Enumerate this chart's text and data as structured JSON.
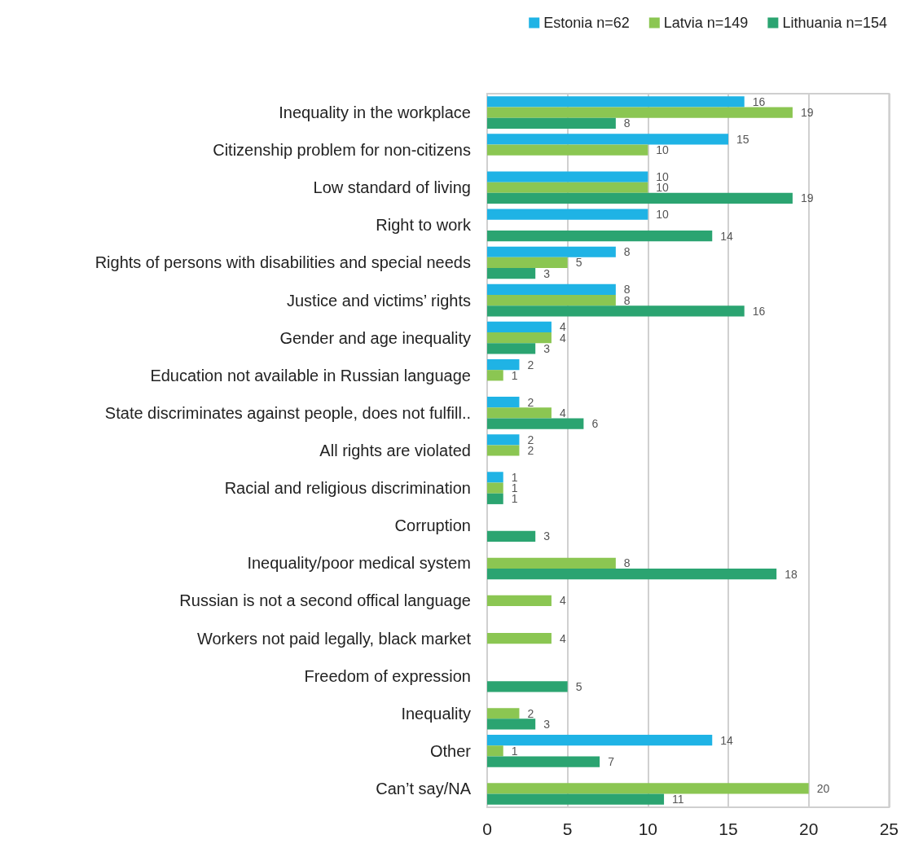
{
  "chart_data": {
    "type": "bar",
    "orientation": "horizontal",
    "categories": [
      "Inequality in the workplace",
      "Citizenship problem for non-citizens",
      "Low standard of living",
      "Right to work",
      "Rights of persons with disabilities and special needs",
      "Justice and victims’ rights",
      "Gender and age inequality",
      "Education not available in Russian language",
      "State discriminates against people, does not fulfill..",
      "All rights are violated",
      "Racial and religious discrimination",
      "Corruption",
      "Inequality/poor medical system",
      "Russian is not a second offical language",
      "Workers not paid legally, black market",
      "Freedom of expression",
      "Inequality",
      "Other",
      "Can’t say/NA"
    ],
    "series": [
      {
        "name": "Estonia n=62",
        "color": "#1fb3e5",
        "values": [
          16,
          15,
          10,
          10,
          8,
          8,
          4,
          2,
          2,
          2,
          1,
          null,
          null,
          null,
          null,
          null,
          null,
          14,
          null
        ]
      },
      {
        "name": "Latvia n=149",
        "color": "#8bc652",
        "values": [
          19,
          10,
          10,
          null,
          5,
          8,
          4,
          1,
          4,
          2,
          1,
          null,
          8,
          4,
          4,
          null,
          2,
          1,
          20
        ]
      },
      {
        "name": "Lithuania n=154",
        "color": "#2ba471",
        "values": [
          8,
          null,
          19,
          14,
          3,
          16,
          3,
          null,
          6,
          null,
          1,
          3,
          18,
          null,
          null,
          5,
          3,
          7,
          11
        ]
      }
    ],
    "xlim": [
      0,
      25
    ],
    "xticks": [
      0,
      5,
      10,
      15,
      20,
      25
    ],
    "grid": "x",
    "legend": "top right",
    "data_labels": true
  }
}
